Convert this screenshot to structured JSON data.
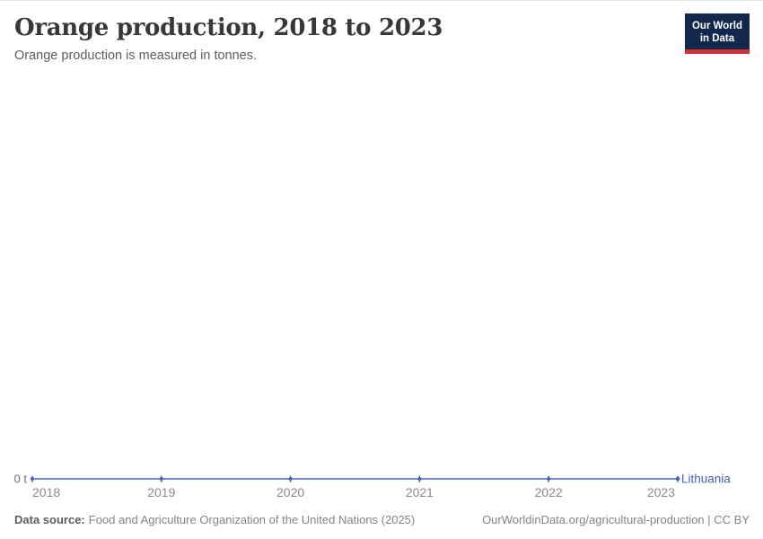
{
  "header": {
    "title": "Orange production, 2018 to 2023",
    "subtitle": "Orange production is measured in tonnes.",
    "logo": {
      "line1": "Our World",
      "line2": "in Data"
    }
  },
  "chart_data": {
    "type": "line",
    "title": "Orange production, 2018 to 2023",
    "subtitle": "Orange production is measured in tonnes.",
    "unit": "tonnes",
    "x": [
      2018,
      2019,
      2020,
      2021,
      2022,
      2023
    ],
    "x_axis": {
      "tick_labels": [
        "2018",
        "2019",
        "2020",
        "2021",
        "2022",
        "2023"
      ]
    },
    "y_axis": {
      "tick_labels": [
        "0 t"
      ],
      "range": [
        0,
        0
      ]
    },
    "series": [
      {
        "name": "Lithuania",
        "values": [
          0,
          0,
          0,
          0,
          0,
          0
        ],
        "color": "#4366a9"
      }
    ],
    "grid": false,
    "legend_position": "end-of-line"
  },
  "footer": {
    "source_label": "Data source:",
    "source_text": "Food and Agriculture Organization of the United Nations (2025)",
    "credit": "OurWorldinData.org/agricultural-production | CC BY"
  },
  "colors": {
    "series_blue": "#4366a9",
    "axis_label_gray": "#8b8b8b",
    "logo_navy": "#12294d",
    "logo_red": "#d13239"
  }
}
